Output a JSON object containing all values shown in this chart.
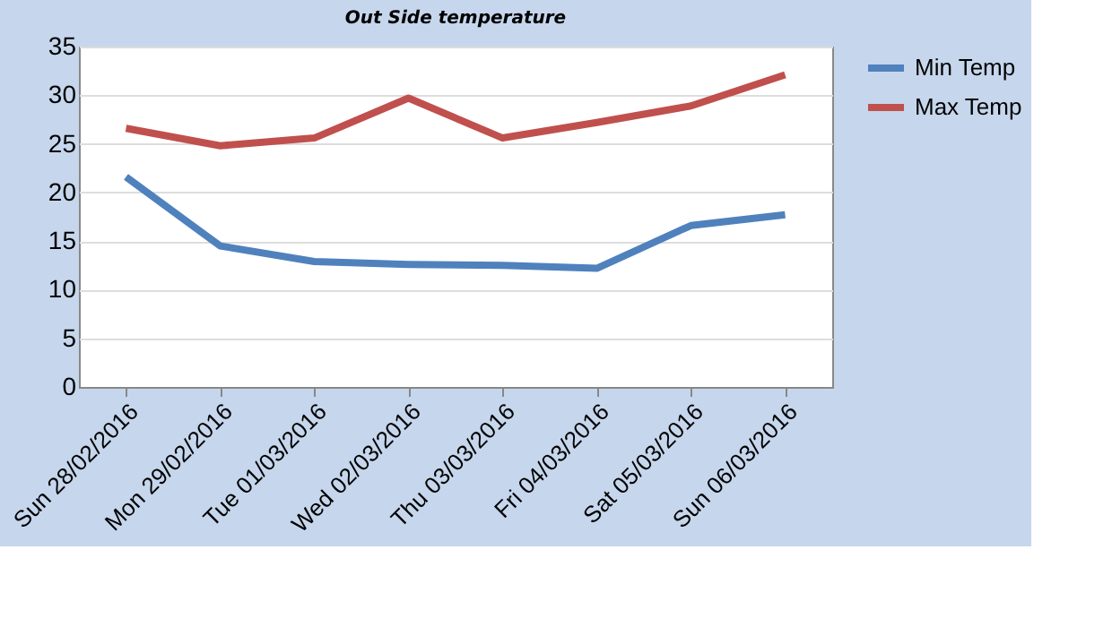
{
  "chart_data": {
    "type": "line",
    "title": "Out Side temperature",
    "categories": [
      "Sun 28/02/2016",
      "Mon 29/02/2016",
      "Tue 01/03/2016",
      "Wed 02/03/2016",
      "Thu 03/03/2016",
      "Fri 04/03/2016",
      "Sat 05/03/2016",
      "Sun 06/03/2016"
    ],
    "series": [
      {
        "name": "Min Temp",
        "color": "#4f81bd",
        "values": [
          21.6,
          14.5,
          12.9,
          12.6,
          12.5,
          12.2,
          16.6,
          17.7
        ]
      },
      {
        "name": "Max Temp",
        "color": "#c0504d",
        "values": [
          26.6,
          24.8,
          25.6,
          29.7,
          25.6,
          27.2,
          28.9,
          32.1
        ]
      }
    ],
    "ylim": [
      0,
      35
    ],
    "yticks": [
      0,
      5,
      10,
      15,
      20,
      25,
      30,
      35
    ],
    "grid": "y",
    "legend": "right",
    "marker": "none",
    "line_style": "solid"
  }
}
